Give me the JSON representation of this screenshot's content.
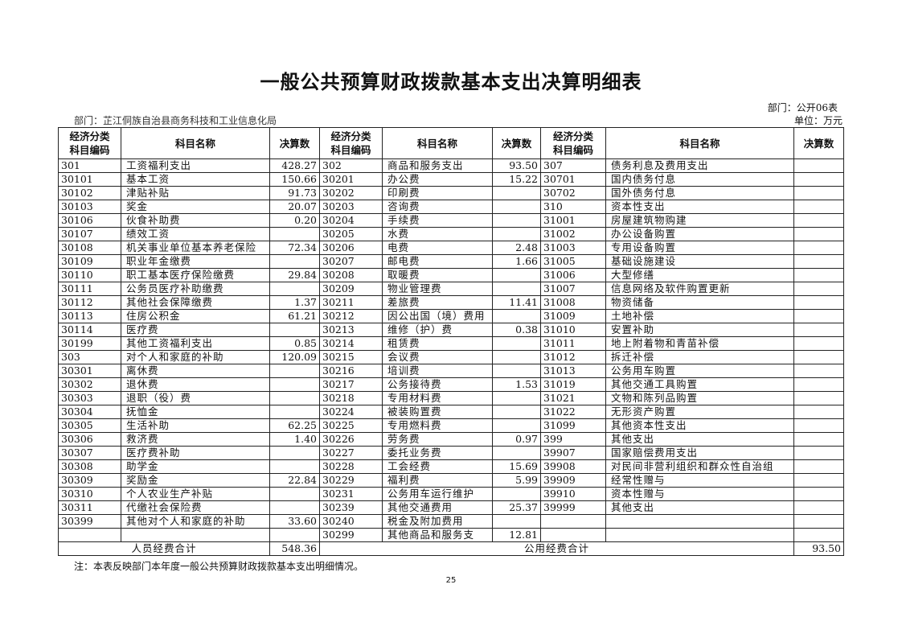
{
  "title": "一般公共预算财政拨款基本支出决算明细表",
  "form_number": "部门：公开06表",
  "department": "部门：芷江侗族自治县商务科技和工业信息化局",
  "unit": "单位：万元",
  "headers": {
    "code": "经济分类\n科目编码",
    "name": "科目名称",
    "amount": "决算数"
  },
  "left_rows": [
    [
      "301",
      "工资福利支出",
      "428.27"
    ],
    [
      "30101",
      "基本工资",
      "150.66"
    ],
    [
      "30102",
      "津贴补贴",
      "91.73"
    ],
    [
      "30103",
      "奖金",
      "20.07"
    ],
    [
      "30106",
      "伙食补助费",
      "0.20"
    ],
    [
      "30107",
      "绩效工资",
      ""
    ],
    [
      "30108",
      "机关事业单位基本养老保险",
      "72.34"
    ],
    [
      "30109",
      "职业年金缴费",
      ""
    ],
    [
      "30110",
      "职工基本医疗保险缴费",
      "29.84"
    ],
    [
      "30111",
      "公务员医疗补助缴费",
      ""
    ],
    [
      "30112",
      "其他社会保障缴费",
      "1.37"
    ],
    [
      "30113",
      "住房公积金",
      "61.21"
    ],
    [
      "30114",
      "医疗费",
      ""
    ],
    [
      "30199",
      "其他工资福利支出",
      "0.85"
    ],
    [
      "303",
      "对个人和家庭的补助",
      "120.09"
    ],
    [
      "30301",
      "离休费",
      ""
    ],
    [
      "30302",
      "退休费",
      ""
    ],
    [
      "30303",
      "退职（役）费",
      ""
    ],
    [
      "30304",
      "抚恤金",
      ""
    ],
    [
      "30305",
      "生活补助",
      "62.25"
    ],
    [
      "30306",
      "救济费",
      "1.40"
    ],
    [
      "30307",
      "医疗费补助",
      ""
    ],
    [
      "30308",
      "助学金",
      ""
    ],
    [
      "30309",
      "奖励金",
      "22.84"
    ],
    [
      "30310",
      "个人农业生产补贴",
      ""
    ],
    [
      "30311",
      "代缴社会保险费",
      ""
    ],
    [
      "30399",
      "其他对个人和家庭的补助",
      "33.60"
    ],
    [
      "",
      "",
      ""
    ]
  ],
  "middle_rows": [
    [
      "302",
      "商品和服务支出",
      "93.50"
    ],
    [
      "30201",
      "办公费",
      "15.22"
    ],
    [
      "30202",
      "印刷费",
      ""
    ],
    [
      "30203",
      "咨询费",
      ""
    ],
    [
      "30204",
      "手续费",
      ""
    ],
    [
      "30205",
      "水费",
      ""
    ],
    [
      "30206",
      "电费",
      "2.48"
    ],
    [
      "30207",
      "邮电费",
      "1.66"
    ],
    [
      "30208",
      "取暖费",
      ""
    ],
    [
      "30209",
      "物业管理费",
      ""
    ],
    [
      "30211",
      "差旅费",
      "11.41"
    ],
    [
      "30212",
      "因公出国（境）费用",
      ""
    ],
    [
      "30213",
      "维修（护）费",
      "0.38"
    ],
    [
      "30214",
      "租赁费",
      ""
    ],
    [
      "30215",
      "会议费",
      ""
    ],
    [
      "30216",
      "培训费",
      ""
    ],
    [
      "30217",
      "公务接待费",
      "1.53"
    ],
    [
      "30218",
      "专用材料费",
      ""
    ],
    [
      "30224",
      "被装购置费",
      ""
    ],
    [
      "30225",
      "专用燃料费",
      ""
    ],
    [
      "30226",
      "劳务费",
      "0.97"
    ],
    [
      "30227",
      "委托业务费",
      ""
    ],
    [
      "30228",
      "工会经费",
      "15.69"
    ],
    [
      "30229",
      "福利费",
      "5.99"
    ],
    [
      "30231",
      "公务用车运行维护",
      ""
    ],
    [
      "30239",
      "其他交通费用",
      "25.37"
    ],
    [
      "30240",
      "税金及附加费用",
      ""
    ],
    [
      "30299",
      "其他商品和服务支",
      "12.81"
    ]
  ],
  "right_rows": [
    [
      "307",
      "债务利息及费用支出",
      ""
    ],
    [
      "30701",
      "国内债务付息",
      ""
    ],
    [
      "30702",
      "国外债务付息",
      ""
    ],
    [
      "310",
      "资本性支出",
      ""
    ],
    [
      "31001",
      "房屋建筑物购建",
      ""
    ],
    [
      "31002",
      "办公设备购置",
      ""
    ],
    [
      "31003",
      "专用设备购置",
      ""
    ],
    [
      "31005",
      "基础设施建设",
      ""
    ],
    [
      "31006",
      "大型修缮",
      ""
    ],
    [
      "31007",
      "信息网络及软件购置更新",
      ""
    ],
    [
      "31008",
      "物资储备",
      ""
    ],
    [
      "31009",
      "土地补偿",
      ""
    ],
    [
      "31010",
      "安置补助",
      ""
    ],
    [
      "31011",
      "地上附着物和青苗补偿",
      ""
    ],
    [
      "31012",
      "拆迁补偿",
      ""
    ],
    [
      "31013",
      "公务用车购置",
      ""
    ],
    [
      "31019",
      "其他交通工具购置",
      ""
    ],
    [
      "31021",
      "文物和陈列品购置",
      ""
    ],
    [
      "31022",
      "无形资产购置",
      ""
    ],
    [
      "31099",
      "其他资本性支出",
      ""
    ],
    [
      "399",
      "其他支出",
      ""
    ],
    [
      "39907",
      "国家赔偿费用支出",
      ""
    ],
    [
      "39908",
      "对民间非营利组织和群众性自治组",
      ""
    ],
    [
      "39909",
      "经常性赠与",
      ""
    ],
    [
      "39910",
      "资本性赠与",
      ""
    ],
    [
      "39999",
      "其他支出",
      ""
    ],
    [
      "",
      "",
      ""
    ],
    [
      "",
      "",
      ""
    ]
  ],
  "totals": {
    "personnel_label": "人员经费合计",
    "personnel_value": "548.36",
    "public_label": "公用经费合计",
    "public_value": "93.50"
  },
  "note": "注：本表反映部门本年度一般公共预算财政拨款基本支出明细情况。",
  "page_number": "25"
}
